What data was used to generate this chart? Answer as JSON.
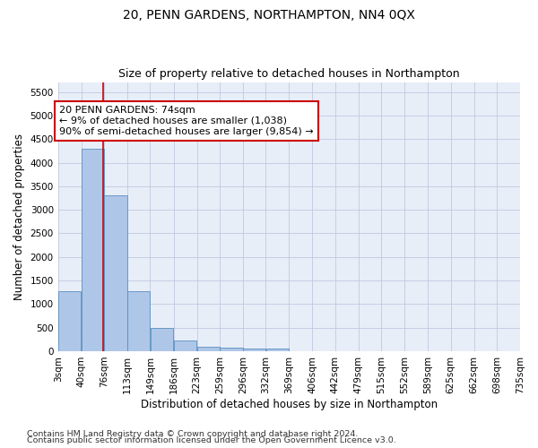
{
  "title": "20, PENN GARDENS, NORTHAMPTON, NN4 0QX",
  "subtitle": "Size of property relative to detached houses in Northampton",
  "xlabel": "Distribution of detached houses by size in Northampton",
  "ylabel": "Number of detached properties",
  "footnote1": "Contains HM Land Registry data © Crown copyright and database right 2024.",
  "footnote2": "Contains public sector information licensed under the Open Government Licence v3.0.",
  "annotation_title": "20 PENN GARDENS: 74sqm",
  "annotation_line1": "← 9% of detached houses are smaller (1,038)",
  "annotation_line2": "90% of semi-detached houses are larger (9,854) →",
  "property_size": 74,
  "bin_edges": [
    3,
    40,
    76,
    113,
    149,
    186,
    223,
    259,
    296,
    332,
    369,
    406,
    442,
    479,
    515,
    552,
    589,
    625,
    662,
    698,
    735
  ],
  "bar_values": [
    1270,
    4300,
    3300,
    1270,
    490,
    220,
    95,
    80,
    55,
    55,
    0,
    0,
    0,
    0,
    0,
    0,
    0,
    0,
    0,
    0
  ],
  "bar_color": "#aec6e8",
  "bar_edge_color": "#5a8fc0",
  "vline_color": "#cc0000",
  "annotation_box_color": "#cc0000",
  "background_color": "#e8eef8",
  "grid_color": "#c0c8e0",
  "ylim_max": 5700,
  "yticks": [
    0,
    500,
    1000,
    1500,
    2000,
    2500,
    3000,
    3500,
    4000,
    4500,
    5000,
    5500
  ],
  "title_fontsize": 10,
  "subtitle_fontsize": 9,
  "axis_label_fontsize": 8.5,
  "tick_fontsize": 7.5,
  "annotation_fontsize": 8,
  "footnote_fontsize": 6.8
}
